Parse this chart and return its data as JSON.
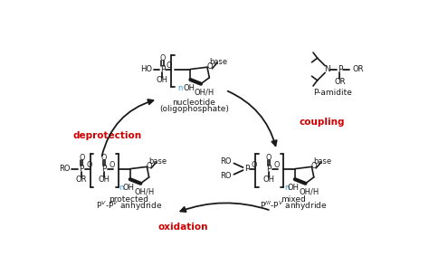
{
  "bg_color": "#ffffff",
  "figsize": [
    4.74,
    3.04
  ],
  "dpi": 100,
  "bond_color": "#1a1a1a",
  "n_color": "#3399cc",
  "arrow_color": "#1a1a1a",
  "red_color": "#cc0000",
  "labels": {
    "deprotection": "deprotection",
    "coupling": "coupling",
    "oxidation": "oxidation"
  }
}
